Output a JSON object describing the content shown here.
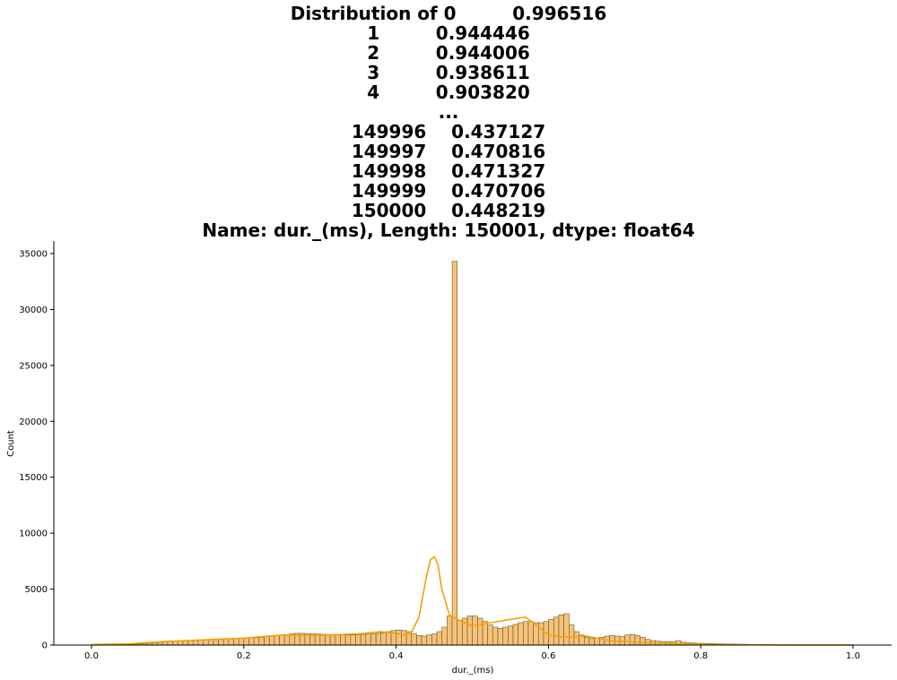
{
  "chart_data": {
    "type": "bar",
    "title_lines": [
      "Distribution of 0         0.996516",
      "1         0.944446",
      "2         0.944006",
      "3         0.938611",
      "4         0.903820",
      "...",
      "149996    0.437127",
      "149997    0.470816",
      "149998    0.471327",
      "149999    0.470706",
      "150000    0.448219",
      "Name: dur._(ms), Length: 150001, dtype: float64"
    ],
    "xlabel": "dur._(ms)",
    "ylabel": "Count",
    "xlim": [
      -0.05,
      1.05
    ],
    "ylim": [
      0,
      36200
    ],
    "xticks": [
      0.0,
      0.2,
      0.4,
      0.6,
      0.8,
      1.0
    ],
    "xtick_labels": [
      "0.0",
      "0.2",
      "0.4",
      "0.6",
      "0.8",
      "1.0"
    ],
    "yticks": [
      0,
      5000,
      10000,
      15000,
      20000,
      25000,
      30000,
      35000
    ],
    "ytick_labels": [
      "0",
      "5000",
      "10000",
      "15000",
      "20000",
      "25000",
      "30000",
      "35000"
    ],
    "bin_start": 0.0,
    "bin_width": 0.00667,
    "counts": [
      10,
      15,
      20,
      25,
      30,
      40,
      50,
      60,
      80,
      100,
      130,
      160,
      200,
      240,
      280,
      320,
      350,
      370,
      390,
      410,
      420,
      440,
      460,
      480,
      500,
      520,
      540,
      560,
      580,
      600,
      620,
      640,
      660,
      700,
      750,
      800,
      850,
      900,
      950,
      1000,
      1050,
      1050,
      1000,
      1000,
      980,
      960,
      950,
      940,
      920,
      900,
      900,
      900,
      920,
      950,
      980,
      1000,
      1050,
      1100,
      1200,
      1300,
      1350,
      1300,
      1200,
      1000,
      850,
      800,
      900,
      1000,
      1200,
      1600,
      2600,
      34300,
      2200,
      2400,
      2600,
      2600,
      2400,
      2100,
      1800,
      1600,
      1500,
      1600,
      1700,
      1850,
      2000,
      2100,
      2100,
      2000,
      2000,
      2100,
      2300,
      2500,
      2700,
      2800,
      1800,
      1200,
      900,
      700,
      600,
      650,
      700,
      800,
      850,
      800,
      750,
      900,
      950,
      850,
      700,
      500,
      400,
      350,
      300,
      300,
      300,
      400,
      250,
      200,
      180,
      160,
      150,
      140,
      130,
      120,
      110,
      100,
      90,
      80,
      70,
      60,
      55,
      50,
      45,
      40,
      35,
      30,
      30,
      25,
      20,
      20,
      15,
      15,
      12,
      10,
      10,
      8,
      6,
      5,
      4,
      3
    ],
    "kde": {
      "x": [
        0.0,
        0.05,
        0.1,
        0.15,
        0.2,
        0.25,
        0.3,
        0.35,
        0.38,
        0.4,
        0.41,
        0.42,
        0.43,
        0.44,
        0.445,
        0.45,
        0.455,
        0.46,
        0.47,
        0.48,
        0.5,
        0.52,
        0.55,
        0.57,
        0.58,
        0.6,
        0.62,
        0.65,
        0.68,
        0.7,
        0.75,
        0.8,
        0.85,
        0.9,
        0.95,
        1.0
      ],
      "y": [
        50,
        120,
        330,
        480,
        620,
        900,
        880,
        1000,
        1200,
        1050,
        900,
        1100,
        2500,
        6200,
        7600,
        7900,
        7200,
        5000,
        2700,
        2300,
        1700,
        1950,
        2300,
        2500,
        2000,
        900,
        700,
        800,
        400,
        300,
        150,
        70,
        30,
        10,
        5,
        2
      ]
    }
  },
  "colors": {
    "bar_fill": "#f5c27a",
    "bar_edge": "#6b5530",
    "kde_line": "#f2a300"
  }
}
